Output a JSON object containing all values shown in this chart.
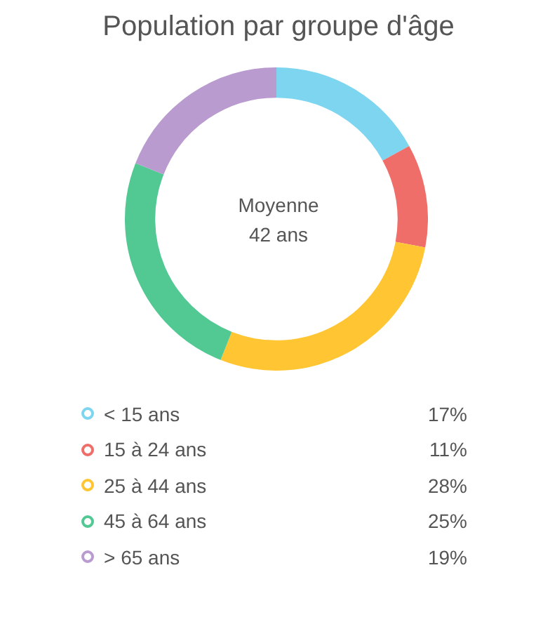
{
  "chart_data": {
    "type": "donut",
    "title": "Population par groupe d'âge",
    "categories": [
      "< 15 ans",
      "15 à 24 ans",
      "25 à 44 ans",
      "45 à 64 ans",
      "> 65 ans"
    ],
    "values": [
      17,
      11,
      28,
      25,
      19
    ],
    "colors": [
      "#7dd5ef",
      "#ef6e69",
      "#ffc532",
      "#52c993",
      "#b99bd0"
    ],
    "value_labels": [
      "17%",
      "11%",
      "28%",
      "25%",
      "19%"
    ],
    "annotations": [
      "Moyenne",
      "42 ans"
    ],
    "legend": "bottom"
  }
}
